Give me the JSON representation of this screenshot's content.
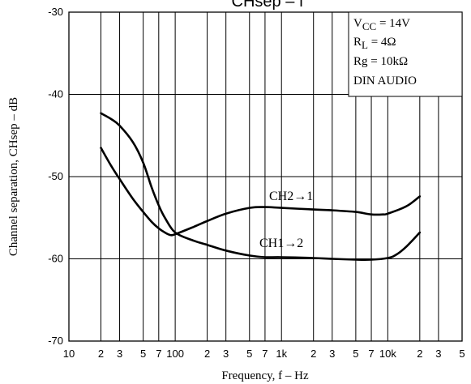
{
  "chart_data": {
    "type": "line",
    "title": "CHsep – f",
    "xlabel": "Frequency, f – Hz",
    "ylabel": "Channel separation, CHsep – dB",
    "xscale": "log",
    "xlim": [
      10,
      50000
    ],
    "ylim": [
      -70,
      -30
    ],
    "grid": true,
    "x_tick_labels": [
      {
        "x": 10,
        "label": "10"
      },
      {
        "x": 20,
        "label": "2"
      },
      {
        "x": 30,
        "label": "3"
      },
      {
        "x": 50,
        "label": "5"
      },
      {
        "x": 70,
        "label": "7"
      },
      {
        "x": 100,
        "label": "100"
      },
      {
        "x": 200,
        "label": "2"
      },
      {
        "x": 300,
        "label": "3"
      },
      {
        "x": 500,
        "label": "5"
      },
      {
        "x": 700,
        "label": "7"
      },
      {
        "x": 1000,
        "label": "1k"
      },
      {
        "x": 2000,
        "label": "2"
      },
      {
        "x": 3000,
        "label": "3"
      },
      {
        "x": 5000,
        "label": "5"
      },
      {
        "x": 7000,
        "label": "7"
      },
      {
        "x": 10000,
        "label": "10k"
      },
      {
        "x": 20000,
        "label": "2"
      },
      {
        "x": 30000,
        "label": "3"
      },
      {
        "x": 50000,
        "label": "5"
      }
    ],
    "y_ticks": [
      {
        "y": -30,
        "label": "-30"
      },
      {
        "y": -40,
        "label": "-40"
      },
      {
        "y": -50,
        "label": "-50"
      },
      {
        "y": -60,
        "label": "-60"
      },
      {
        "y": -70,
        "label": "-70"
      }
    ],
    "conditions": {
      "vcc": {
        "base": "V",
        "sub": "CC",
        "value": " = 14V"
      },
      "rl": {
        "base": "R",
        "sub": "L",
        "value": " = 4Ω"
      },
      "rg": "Rg = 10kΩ",
      "din": "DIN AUDIO"
    },
    "series": [
      {
        "name": "CH2→1",
        "x": [
          20,
          25,
          30,
          40,
          50,
          60,
          70,
          80,
          100,
          150,
          200,
          300,
          500,
          700,
          1000,
          2000,
          3000,
          5000,
          7000,
          9000,
          10000,
          15000,
          20000
        ],
        "y": [
          -42.3,
          -43.0,
          -43.8,
          -45.8,
          -48.3,
          -51.3,
          -53.5,
          -55.0,
          -56.8,
          -56.0,
          -55.3,
          -54.3,
          -53.8,
          -53.8,
          -53.9,
          -54.1,
          -54.2,
          -54.4,
          -54.6,
          -54.6,
          -54.5,
          -53.6,
          -52.4
        ]
      },
      {
        "name": "CH1→2",
        "x": [
          20,
          25,
          30,
          40,
          50,
          60,
          70,
          80,
          100,
          150,
          200,
          300,
          500,
          700,
          1000,
          2000,
          3000,
          5000,
          7000,
          10000,
          12000,
          15000,
          20000
        ],
        "y": [
          -46.5,
          -48.7,
          -50.2,
          -52.5,
          -54.2,
          -55.5,
          -56.5,
          -57.1,
          -57.0,
          -56.1,
          -55.2,
          -54.3,
          -53.7,
          -53.7,
          -53.8,
          -54.0,
          -54.0,
          -54.2,
          -54.4,
          -54.5,
          -54.5,
          -54.0,
          -52.4
        ],
        "x2": [
          100,
          150,
          200,
          300,
          500,
          700,
          1000,
          2000,
          3000,
          5000,
          7000,
          10000,
          12000,
          15000,
          20000
        ],
        "y2": [
          -55.0,
          -57.0,
          -58.0,
          -59.0,
          -59.7,
          -59.8,
          -59.8,
          -59.9,
          -60.0,
          -60.1,
          -60.1,
          -59.9,
          -59.5,
          -58.5,
          -56.8
        ]
      }
    ],
    "curve_labels": [
      {
        "text": "CH2→1",
        "series": 0
      },
      {
        "text": "CH1→2",
        "series": 1
      }
    ]
  }
}
